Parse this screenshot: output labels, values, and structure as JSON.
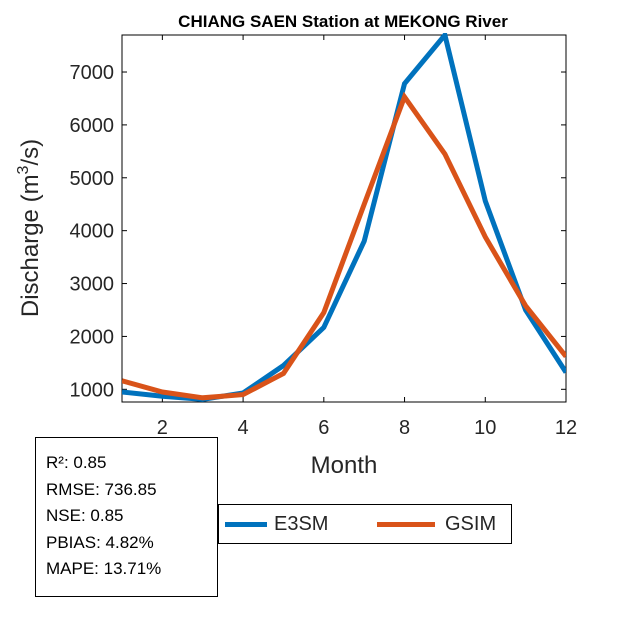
{
  "colors": {
    "e3sm": "#0072bd",
    "gsim": "#d95319"
  },
  "chart_data": {
    "type": "line",
    "title": "CHIANG SAEN  Station at  MEKONG  River",
    "xlabel": "Month",
    "ylabel_main": "Discharge (m",
    "ylabel_sup": "3",
    "ylabel_end": "/s)",
    "xlim": [
      1,
      12
    ],
    "ylim": [
      760,
      7700
    ],
    "xticks": [
      2,
      4,
      6,
      8,
      10,
      12
    ],
    "yticks": [
      1000,
      2000,
      3000,
      4000,
      5000,
      6000,
      7000
    ],
    "x": [
      1,
      2,
      3,
      4,
      5,
      6,
      7,
      8,
      9,
      10,
      11,
      12
    ],
    "series": [
      {
        "name": "E3SM",
        "values": [
          950,
          870,
          810,
          930,
          1450,
          2170,
          3800,
          6780,
          7700,
          4560,
          2500,
          1320
        ]
      },
      {
        "name": "GSIM",
        "values": [
          1160,
          950,
          840,
          900,
          1300,
          2450,
          4500,
          6530,
          5450,
          3880,
          2580,
          1620
        ]
      }
    ]
  },
  "stats": [
    "R²: 0.85",
    "RMSE: 736.85",
    "NSE: 0.85",
    "PBIAS: 4.82%",
    "MAPE: 13.71%"
  ]
}
